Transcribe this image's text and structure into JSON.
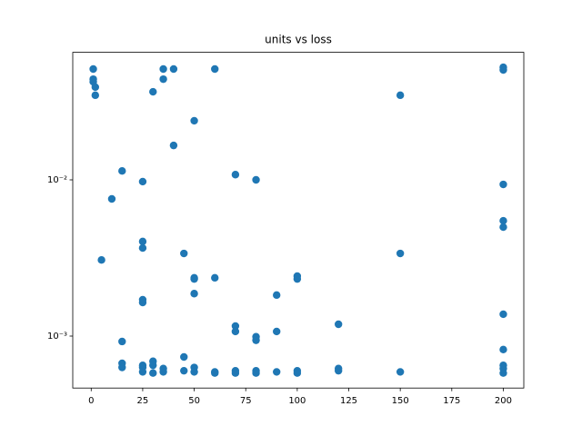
{
  "chart_data": {
    "type": "scatter",
    "title": "units vs loss",
    "yscale": "log",
    "color": "#1f77b4",
    "x": [
      1,
      1,
      1,
      2,
      2,
      5,
      10,
      15,
      15,
      15,
      15,
      25,
      25,
      25,
      25,
      25,
      25,
      25,
      25,
      30,
      30,
      30,
      30,
      35,
      35,
      35,
      35,
      40,
      40,
      45,
      45,
      45,
      50,
      50,
      50,
      50,
      50,
      50,
      60,
      60,
      60,
      60,
      70,
      70,
      70,
      70,
      70,
      80,
      80,
      80,
      80,
      80,
      90,
      90,
      90,
      100,
      100,
      100,
      100,
      120,
      120,
      120,
      150,
      150,
      150,
      200,
      200,
      200,
      200,
      200,
      200,
      200,
      200,
      200,
      200
    ],
    "values": [
      0.0512,
      0.0441,
      0.0424,
      0.0392,
      0.0348,
      0.00307,
      0.00755,
      0.0114,
      0.000923,
      0.00067,
      0.00063,
      0.00974,
      0.00403,
      0.00366,
      0.00171,
      0.00164,
      0.00065,
      0.00063,
      0.00059,
      0.0366,
      0.00069,
      0.00065,
      0.00058,
      0.0512,
      0.0441,
      0.00062,
      0.00059,
      0.0512,
      0.0166,
      0.00338,
      0.000735,
      0.0006,
      0.0239,
      0.00236,
      0.00232,
      0.00187,
      0.00063,
      0.00059,
      0.0512,
      0.00236,
      0.00059,
      0.00058,
      0.0108,
      0.00116,
      0.00107,
      0.0006,
      0.00058,
      0.01,
      0.00099,
      0.00094,
      0.0006,
      0.00058,
      0.00183,
      0.00107,
      0.00059,
      0.00242,
      0.00232,
      0.0006,
      0.00058,
      0.00119,
      0.00062,
      0.0006,
      0.0348,
      0.00338,
      0.00059,
      0.0525,
      0.0505,
      0.00935,
      0.00547,
      0.00498,
      0.00138,
      0.00082,
      0.00065,
      0.00062,
      0.00058
    ],
    "xlim": [
      -8.95,
      209.95
    ],
    "xticks": [
      0,
      25,
      50,
      75,
      100,
      125,
      150,
      175,
      200
    ],
    "ylim": [
      0.000465,
      0.0655
    ],
    "yticks": [
      {
        "value": 0.001,
        "label": "10⁻³"
      },
      {
        "value": 0.01,
        "label": "10⁻²"
      }
    ]
  }
}
